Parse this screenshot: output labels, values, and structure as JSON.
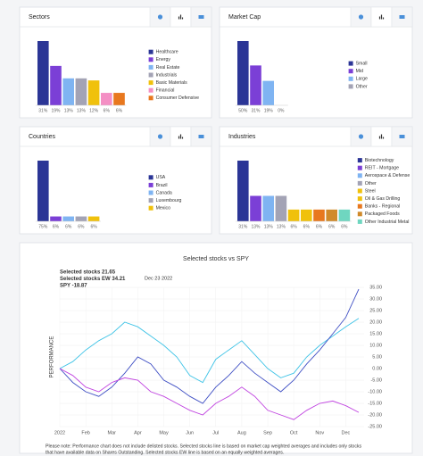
{
  "chart_data": [
    {
      "type": "bar",
      "title": "Sectors",
      "categories": [
        "Healthcare",
        "Energy",
        "Real Estate",
        "Industrials",
        "Basic Materials",
        "Financial",
        "Consumer Defensive"
      ],
      "values": [
        31,
        19,
        13,
        13,
        12,
        6,
        6
      ],
      "value_labels": [
        "31%",
        "19%",
        "13%",
        "13%",
        "12%",
        "6%",
        "6%"
      ],
      "colors": [
        "#2b3596",
        "#7b3fd6",
        "#7fb4f2",
        "#a3a3b5",
        "#f0c10c",
        "#f48fc4",
        "#e8781e"
      ]
    },
    {
      "type": "bar",
      "title": "Market Cap",
      "categories": [
        "Small",
        "Mid",
        "Large",
        "Other"
      ],
      "values": [
        50,
        31,
        19,
        0
      ],
      "value_labels": [
        "50%",
        "31%",
        "19%",
        "0%"
      ],
      "colors": [
        "#2b3596",
        "#7b3fd6",
        "#7fb4f2",
        "#a3a3b5"
      ]
    },
    {
      "type": "bar",
      "title": "Countries",
      "categories": [
        "USA",
        "Brazil",
        "Canada",
        "Luxembourg",
        "Mexico"
      ],
      "values": [
        75,
        6,
        6,
        6,
        6
      ],
      "value_labels": [
        "75%",
        "6%",
        "6%",
        "6%",
        "6%"
      ],
      "colors": [
        "#2b3596",
        "#7b3fd6",
        "#7fb4f2",
        "#a3a3b5",
        "#f0c10c"
      ]
    },
    {
      "type": "bar",
      "title": "Industries",
      "categories": [
        "Biotechnology",
        "REIT - Mortgage",
        "Aerospace & Defense",
        "Other",
        "Steel",
        "Oil & Gas Drilling",
        "Banks - Regional",
        "Packaged Foods",
        "Other Industrial Metal"
      ],
      "values": [
        31,
        13,
        13,
        13,
        6,
        6,
        6,
        6,
        6
      ],
      "value_labels": [
        "31%",
        "13%",
        "13%",
        "13%",
        "6%",
        "6%",
        "6%",
        "6%",
        "6%"
      ],
      "colors": [
        "#2b3596",
        "#7b3fd6",
        "#7fb4f2",
        "#a3a3b5",
        "#f0c10c",
        "#f0c10c",
        "#e8781e",
        "#d08a2a",
        "#6fd6c0"
      ]
    },
    {
      "type": "line",
      "title": "Selected stocks vs SPY",
      "date": "Dec 23 2022",
      "ylabel": "PERFORMANCE",
      "legend_labels": [
        "Selected stocks 21.65",
        "Selected stocks EW 34.21",
        "SPY -18.87"
      ],
      "categories": [
        "2022",
        null,
        "Feb",
        null,
        "Mar",
        null,
        "Apr",
        null,
        "May",
        null,
        "Jun",
        null,
        "Jul",
        null,
        "Aug",
        null,
        "Sep",
        null,
        "Oct",
        null,
        "Nov",
        null,
        "Dec",
        null
      ],
      "series": [
        {
          "name": "Selected stocks",
          "color": "#3ec3e6",
          "values": [
            0,
            3,
            8,
            12,
            15,
            20,
            18,
            14,
            10,
            5,
            -3,
            -6,
            4,
            8,
            12,
            6,
            0,
            -4,
            -2,
            5,
            10,
            14,
            18,
            21.65
          ]
        },
        {
          "name": "Selected stocks EW",
          "color": "#3f4fc4",
          "values": [
            0,
            -6,
            -10,
            -12,
            -8,
            -2,
            5,
            2,
            -5,
            -8,
            -12,
            -15,
            -8,
            -3,
            3,
            -2,
            -6,
            -10,
            -5,
            2,
            8,
            15,
            22,
            34.21
          ]
        },
        {
          "name": "SPY",
          "color": "#c044e0",
          "values": [
            0,
            -3,
            -8,
            -10,
            -6,
            -4,
            -5,
            -10,
            -12,
            -15,
            -18,
            -20,
            -15,
            -12,
            -8,
            -12,
            -18,
            -20,
            -22,
            -18,
            -15,
            -14,
            -16,
            -18.87
          ]
        }
      ],
      "ylim": [
        -25,
        35
      ],
      "yticks": [
        {
          "value": 35,
          "label": "35.00"
        },
        {
          "value": 30,
          "label": "30.00"
        },
        {
          "value": 25,
          "label": "25.00"
        },
        {
          "value": 20,
          "label": "20.00"
        },
        {
          "value": 15,
          "label": "15.00"
        },
        {
          "value": 10,
          "label": "10.00"
        },
        {
          "value": 5,
          "label": "5.00"
        },
        {
          "value": 0,
          "label": "0.00"
        },
        {
          "value": -5,
          "label": "-5.00"
        },
        {
          "value": -10,
          "label": "-10.00"
        },
        {
          "value": -15,
          "label": "-15.00"
        },
        {
          "value": -20,
          "label": "-20.00"
        },
        {
          "value": -25,
          "label": "-25.00"
        }
      ],
      "grid": true,
      "note": [
        "Please note: Performance chart does not include delisted stocks. Selected stocks line is based on market cap weighted averages and includes only stocks",
        "that have available data on Shares Outstanding. Selected stocks EW line is based on an equally weighted averages."
      ]
    }
  ]
}
